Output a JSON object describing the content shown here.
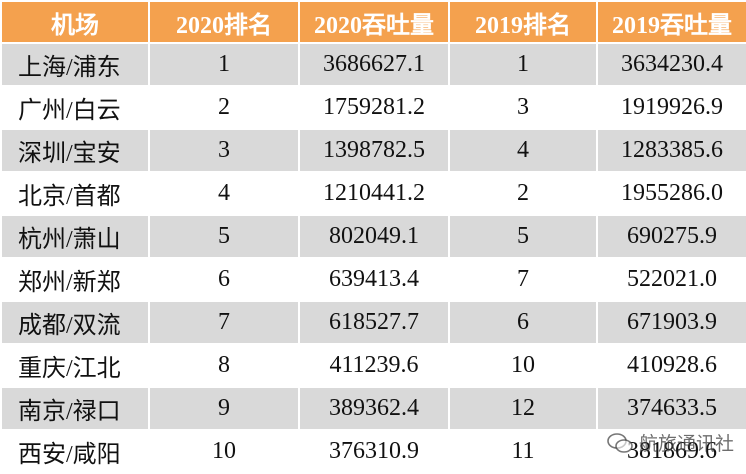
{
  "table": {
    "header": [
      "机场",
      "2020排名",
      "2020吞吐量",
      "2019排名",
      "2019吞吐量"
    ],
    "rows": [
      [
        "上海/浦东",
        "1",
        "3686627.1",
        "1",
        "3634230.4"
      ],
      [
        "广州/白云",
        "2",
        "1759281.2",
        "3",
        "1919926.9"
      ],
      [
        "深圳/宝安",
        "3",
        "1398782.5",
        "4",
        "1283385.6"
      ],
      [
        "北京/首都",
        "4",
        "1210441.2",
        "2",
        "1955286.0"
      ],
      [
        "杭州/萧山",
        "5",
        "802049.1",
        "5",
        "690275.9"
      ],
      [
        "郑州/新郑",
        "6",
        "639413.4",
        "7",
        "522021.0"
      ],
      [
        "成都/双流",
        "7",
        "618527.7",
        "6",
        "671903.9"
      ],
      [
        "重庆/江北",
        "8",
        "411239.6",
        "10",
        "410928.6"
      ],
      [
        "南京/禄口",
        "9",
        "389362.4",
        "12",
        "374633.5"
      ],
      [
        "西安/咸阳",
        "10",
        "376310.9",
        "11",
        "381869.6"
      ]
    ]
  },
  "watermark": "航旅通讯社"
}
